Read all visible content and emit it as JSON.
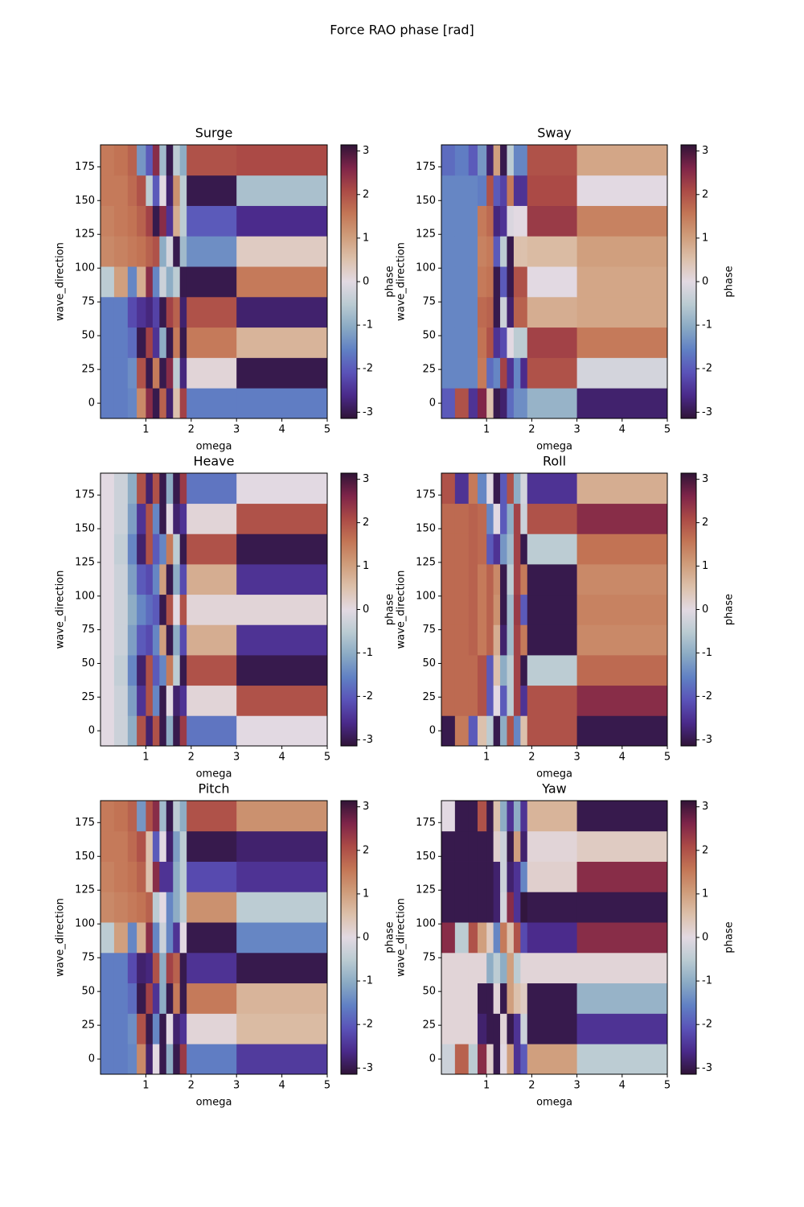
{
  "title": "Force RAO phase [rad]",
  "chart_data": [
    {
      "type": "heatmap",
      "title": "Surge",
      "xlabel": "omega",
      "ylabel": "wave_direction",
      "colorbar_label": "phase",
      "xbins": [
        0,
        0.3,
        0.6,
        0.8,
        1.0,
        1.15,
        1.3,
        1.45,
        1.6,
        1.75,
        1.9,
        3,
        5
      ],
      "ybins": [
        -11.25,
        11.25,
        33.75,
        56.25,
        78.75,
        101.25,
        123.75,
        146.25,
        168.75,
        191.25
      ],
      "values": [
        [
          -1.6,
          -1.6,
          -1.5,
          1.3,
          2.5,
          -3,
          1.8,
          -2.8,
          0.5,
          2.2,
          -1.6,
          -1.6
        ],
        [
          -1.6,
          -1.6,
          -1.4,
          2.0,
          -3,
          1.5,
          -3,
          2.5,
          -0.5,
          -2.7,
          0.1,
          -3.0
        ],
        [
          -1.6,
          -1.6,
          -1.8,
          -3,
          2.2,
          -2.5,
          -1,
          -3,
          1.5,
          -3,
          1.5,
          0.7
        ],
        [
          -1.6,
          -1.6,
          -2.2,
          -2.5,
          -2.7,
          -2.3,
          -3,
          2.2,
          1.8,
          -2.8,
          2.0,
          -2.8
        ],
        [
          -0.5,
          1.0,
          -1.5,
          0.8,
          2.5,
          -1.5,
          -0.3,
          -1,
          -0.5,
          -3,
          -3,
          1.5
        ],
        [
          1.3,
          1.4,
          1.5,
          1.6,
          1.8,
          2,
          -1,
          -0.2,
          -3,
          -0.8,
          -1.4,
          0.3
        ],
        [
          1.4,
          1.5,
          1.6,
          1.8,
          2.2,
          -3,
          2.5,
          -2.5,
          0.8,
          -0.5,
          -2.0,
          -2.6
        ],
        [
          1.5,
          1.5,
          1.7,
          2,
          -0.5,
          -2,
          0,
          -2.8,
          1.2,
          -0.5,
          -3,
          -0.7
        ],
        [
          1.5,
          1.6,
          1.8,
          -1.3,
          -2,
          2.5,
          -0.8,
          -3,
          -0.5,
          -1.0,
          2.0,
          2.1
        ]
      ],
      "xlim": [
        0,
        5
      ],
      "xticks": [
        1,
        2,
        3,
        4,
        5
      ],
      "ylim": [
        -11.25,
        191.25
      ],
      "yticks": [
        0,
        25,
        50,
        75,
        100,
        125,
        150,
        175
      ],
      "clim": [
        -3.14159,
        3.14159
      ],
      "cticks": [
        -3,
        -2,
        -1,
        0,
        1,
        2,
        3
      ]
    },
    {
      "type": "heatmap",
      "title": "Sway",
      "xlabel": "omega",
      "ylabel": "wave_direction",
      "colorbar_label": "phase",
      "xbins": [
        0,
        0.3,
        0.6,
        0.8,
        1.0,
        1.15,
        1.3,
        1.45,
        1.6,
        1.75,
        1.9,
        3,
        5
      ],
      "ybins": [
        -11.25,
        11.25,
        33.75,
        56.25,
        78.75,
        101.25,
        123.75,
        146.25,
        168.75,
        191.25
      ],
      "values": [
        [
          -2,
          2,
          -2.5,
          2.6,
          0.5,
          -3,
          -2.8,
          -1.8,
          -1.4,
          -1.4,
          -0.9,
          -2.8
        ],
        [
          -1.5,
          -1.5,
          -1.5,
          1.5,
          -1.8,
          -1.5,
          2.2,
          -2.5,
          -1.5,
          -2.6,
          2.0,
          -0.2
        ],
        [
          -1.5,
          -1.5,
          -1.5,
          1.6,
          2,
          -2.5,
          -2.2,
          0,
          -0.5,
          -0.5,
          2.2,
          1.5
        ],
        [
          -1.5,
          -1.5,
          -1.5,
          1.7,
          1.8,
          -3,
          -0.3,
          -2.8,
          1.8,
          1.8,
          0.8,
          0.9
        ],
        [
          -1.5,
          -1.5,
          -1.5,
          1.5,
          1.6,
          -3,
          -2,
          -3,
          2,
          2,
          0,
          0.9
        ],
        [
          -1.5,
          -1.5,
          -1.5,
          1.4,
          1.5,
          -2,
          -0.5,
          -3,
          0.5,
          0.5,
          0.6,
          1.0
        ],
        [
          -1.5,
          -1.5,
          -1.5,
          1.5,
          1.7,
          -2.7,
          -2.5,
          -0.1,
          0,
          0,
          2.3,
          1.4
        ],
        [
          -1.5,
          -1.5,
          -1.5,
          -1.6,
          2,
          -2,
          -2.3,
          1.5,
          -2.5,
          -2.5,
          2.1,
          0
        ],
        [
          -1.8,
          -1.6,
          -2,
          -1.3,
          -2.8,
          1.0,
          -3,
          -0.5,
          -1.5,
          -1.5,
          2.0,
          0.9
        ]
      ],
      "xlim": [
        0,
        5
      ],
      "xticks": [
        1,
        2,
        3,
        4,
        5
      ],
      "ylim": [
        -11.25,
        191.25
      ],
      "yticks": [
        0,
        25,
        50,
        75,
        100,
        125,
        150,
        175
      ],
      "clim": [
        -3.14159,
        3.14159
      ],
      "cticks": [
        -3,
        -2,
        -1,
        0,
        1,
        2,
        3
      ]
    },
    {
      "type": "heatmap",
      "title": "Heave",
      "xlabel": "omega",
      "ylabel": "wave_direction",
      "colorbar_label": "phase",
      "xbins": [
        0,
        0.3,
        0.6,
        0.8,
        1.0,
        1.15,
        1.3,
        1.45,
        1.6,
        1.75,
        1.9,
        3,
        5
      ],
      "ybins": [
        -11.25,
        11.25,
        33.75,
        56.25,
        78.75,
        101.25,
        123.75,
        146.25,
        168.75,
        191.25
      ],
      "values": [
        [
          0,
          -0.3,
          -1,
          2,
          -2.8,
          2,
          -3,
          -1,
          -3,
          2.3,
          -1.7,
          0
        ],
        [
          0,
          -0.3,
          -1.2,
          -2.5,
          2,
          -1.5,
          -3,
          0,
          -2.8,
          -2.5,
          0.1,
          2
        ],
        [
          0,
          -0.4,
          -1.5,
          -2.8,
          2,
          -2,
          -1.5,
          1.5,
          -0.5,
          -3,
          2,
          -3
        ],
        [
          0,
          -0.3,
          -1.2,
          -2,
          -2.2,
          -1.5,
          1,
          -3,
          -1,
          -2.2,
          0.8,
          -2.5
        ],
        [
          0,
          -0.3,
          -1,
          -1.5,
          -1.8,
          -2,
          -3,
          2,
          0,
          2,
          0.1,
          0.1
        ],
        [
          0,
          -0.3,
          -1.2,
          -2,
          -2.2,
          -1.5,
          1,
          -3,
          -1,
          -2.2,
          0.8,
          -2.5
        ],
        [
          0,
          -0.4,
          -1.5,
          -2.8,
          2,
          -2,
          -1.5,
          1.5,
          -0.5,
          -3,
          2,
          -3
        ],
        [
          0,
          -0.3,
          -1.2,
          -2.5,
          2,
          -1.5,
          -3,
          0,
          -2.8,
          -2.5,
          0.1,
          2
        ],
        [
          0,
          -0.3,
          -1,
          2,
          -2.8,
          2,
          -3,
          -1,
          -3,
          2.3,
          -1.7,
          0
        ]
      ],
      "xlim": [
        0,
        5
      ],
      "xticks": [
        1,
        2,
        3,
        4,
        5
      ],
      "ylim": [
        -11.25,
        191.25
      ],
      "yticks": [
        0,
        25,
        50,
        75,
        100,
        125,
        150,
        175
      ],
      "clim": [
        -3.14159,
        3.14159
      ],
      "cticks": [
        -3,
        -2,
        -1,
        0,
        1,
        2,
        3
      ]
    },
    {
      "type": "heatmap",
      "title": "Roll",
      "xlabel": "omega",
      "ylabel": "wave_direction",
      "colorbar_label": "phase",
      "xbins": [
        0,
        0.3,
        0.6,
        0.8,
        1.0,
        1.15,
        1.3,
        1.45,
        1.6,
        1.75,
        1.9,
        3,
        5
      ],
      "ybins": [
        -11.25,
        11.25,
        33.75,
        56.25,
        78.75,
        101.25,
        123.75,
        146.25,
        168.75,
        191.25
      ],
      "values": [
        [
          -3,
          1.5,
          -2,
          0.5,
          -0.5,
          -3,
          -1,
          2,
          -1.5,
          0.5,
          2,
          -3
        ],
        [
          1.7,
          1.7,
          1.7,
          2,
          -2,
          0,
          -2,
          -0.5,
          2.2,
          -2.5,
          2,
          2.5
        ],
        [
          1.7,
          1.7,
          1.7,
          2,
          -2,
          0.5,
          -1,
          -0.5,
          2.2,
          -3,
          -0.5,
          1.7
        ],
        [
          1.7,
          1.7,
          1.8,
          1.5,
          1.8,
          0.8,
          -2.8,
          -0.8,
          2.2,
          1.5,
          -3,
          1.3
        ],
        [
          1.7,
          1.7,
          1.8,
          1.5,
          1.8,
          1.2,
          -3,
          -0.8,
          2.3,
          -2,
          -3,
          1.4
        ],
        [
          1.7,
          1.7,
          1.8,
          1.5,
          1.8,
          1.3,
          -3,
          -0.5,
          2.2,
          1.5,
          -3,
          1.3
        ],
        [
          1.7,
          1.7,
          1.8,
          1.7,
          -2,
          -2.5,
          -1.3,
          -0.8,
          2.2,
          -3,
          -0.5,
          1.6
        ],
        [
          1.7,
          1.7,
          1.8,
          1.7,
          -1.5,
          0,
          -2,
          -1,
          2.2,
          -0.3,
          2,
          2.5
        ],
        [
          2,
          -2.5,
          1.5,
          -1.5,
          0,
          -3,
          -2,
          2,
          -1,
          -0.2,
          -2.5,
          0.8
        ]
      ],
      "xlim": [
        0,
        5
      ],
      "xticks": [
        1,
        2,
        3,
        4,
        5
      ],
      "ylim": [
        -11.25,
        191.25
      ],
      "yticks": [
        0,
        25,
        50,
        75,
        100,
        125,
        150,
        175
      ],
      "clim": [
        -3.14159,
        3.14159
      ],
      "cticks": [
        -3,
        -2,
        -1,
        0,
        1,
        2,
        3
      ]
    },
    {
      "type": "heatmap",
      "title": "Pitch",
      "xlabel": "omega",
      "ylabel": "wave_direction",
      "colorbar_label": "phase",
      "xbins": [
        0,
        0.3,
        0.6,
        0.8,
        1.0,
        1.15,
        1.3,
        1.45,
        1.6,
        1.75,
        1.9,
        3,
        5
      ],
      "ybins": [
        -11.25,
        11.25,
        33.75,
        56.25,
        78.75,
        101.25,
        123.75,
        146.25,
        168.75,
        191.25
      ],
      "values": [
        [
          -1.6,
          -1.6,
          -1.5,
          1.3,
          -2.8,
          0,
          -3,
          -1,
          -3,
          2.3,
          -1.6,
          -2.4
        ],
        [
          -1.6,
          -1.6,
          -1.4,
          2.0,
          -3,
          -1.5,
          -3,
          0,
          -2.8,
          -2.5,
          0.1,
          0.6
        ],
        [
          -1.6,
          -1.6,
          -1.8,
          -3,
          2.2,
          -2.5,
          -1,
          -3,
          1.5,
          -3,
          1.5,
          0.7
        ],
        [
          -1.6,
          -1.6,
          -2.2,
          -2.8,
          -2.7,
          2,
          -1,
          2.2,
          1.8,
          -3,
          -2.5,
          -3
        ],
        [
          -0.5,
          1.0,
          -1.5,
          0.8,
          2.5,
          -1.5,
          -0.3,
          -1.5,
          -2.5,
          0,
          -3,
          -1.5
        ],
        [
          1.3,
          1.4,
          1.5,
          1.6,
          1.8,
          -0.5,
          0,
          -1.5,
          -1,
          -0.5,
          1.2,
          -0.5
        ],
        [
          1.4,
          1.5,
          1.6,
          1.8,
          0.5,
          2.5,
          -2.5,
          -2.5,
          -1,
          -0.5,
          -2.2,
          -2.5
        ],
        [
          1.5,
          1.5,
          1.7,
          2,
          0.5,
          -2,
          0,
          -2.8,
          -1.2,
          -0.5,
          -3,
          -2.8
        ],
        [
          1.5,
          1.6,
          1.8,
          -1.3,
          2,
          2.5,
          -0.8,
          -3,
          -0.5,
          -1.0,
          2.0,
          1.2
        ]
      ],
      "xlim": [
        0,
        5
      ],
      "xticks": [
        1,
        2,
        3,
        4,
        5
      ],
      "ylim": [
        -11.25,
        191.25
      ],
      "yticks": [
        0,
        25,
        50,
        75,
        100,
        125,
        150,
        175
      ],
      "clim": [
        -3.14159,
        3.14159
      ],
      "cticks": [
        -3,
        -2,
        -1,
        0,
        1,
        2,
        3
      ]
    },
    {
      "type": "heatmap",
      "title": "Yaw",
      "xlabel": "omega",
      "ylabel": "wave_direction",
      "colorbar_label": "phase",
      "xbins": [
        0,
        0.3,
        0.6,
        0.8,
        1.0,
        1.15,
        1.3,
        1.45,
        1.6,
        1.75,
        1.9,
        3,
        5
      ],
      "ybins": [
        -11.25,
        11.25,
        33.75,
        56.25,
        78.75,
        101.25,
        123.75,
        146.25,
        168.75,
        191.25
      ],
      "values": [
        [
          -0.3,
          1.8,
          -0.5,
          2.5,
          0.2,
          -3,
          0,
          1,
          -2.5,
          -2,
          1,
          -0.5
        ],
        [
          0.1,
          0.1,
          0.1,
          -2.8,
          -3,
          -3,
          0.1,
          -3,
          -2.5,
          -0.3,
          -3,
          -2.5
        ],
        [
          0.1,
          0.1,
          0.1,
          -3,
          -3,
          0.1,
          -3,
          1,
          0.5,
          0.3,
          -3,
          -0.9
        ],
        [
          0.1,
          0.1,
          0.1,
          0.1,
          -1,
          -0.5,
          -1,
          1,
          -0.5,
          0.1,
          0.1,
          0.1
        ],
        [
          2.5,
          -0.5,
          2,
          1,
          0.3,
          -1.5,
          1.5,
          0.5,
          2,
          -2.2,
          -2.6,
          2.5
        ],
        [
          -3,
          -3,
          -3,
          -3,
          -3,
          -2.8,
          -0.2,
          2.5,
          -2.5,
          -3.1,
          -3,
          -3
        ],
        [
          -3,
          -3,
          -3,
          -3,
          -3,
          -2.8,
          -0.3,
          -2.8,
          -2.5,
          -1.5,
          0.2,
          2.5
        ],
        [
          -3,
          -3,
          -3,
          -3,
          -3,
          0.2,
          -0.3,
          -3,
          1,
          -2.8,
          0.1,
          0.3
        ],
        [
          0,
          -3,
          -3,
          2,
          -3,
          0.5,
          -1,
          -2.5,
          -1,
          -2.5,
          0.7,
          -3
        ]
      ],
      "xlim": [
        0,
        5
      ],
      "xticks": [
        1,
        2,
        3,
        4,
        5
      ],
      "ylim": [
        -11.25,
        191.25
      ],
      "yticks": [
        0,
        25,
        50,
        75,
        100,
        125,
        150,
        175
      ],
      "clim": [
        -3.14159,
        3.14159
      ],
      "cticks": [
        -3,
        -2,
        -1,
        0,
        1,
        2,
        3
      ]
    }
  ],
  "colormap": [
    "#301437",
    "#4a2a8a",
    "#5a52b8",
    "#6080c4",
    "#8aaac4",
    "#bacbd2",
    "#e2d9e2",
    "#dcc0aa",
    "#cf9c7a",
    "#c37555",
    "#ab4a46",
    "#7e2449",
    "#301437"
  ]
}
